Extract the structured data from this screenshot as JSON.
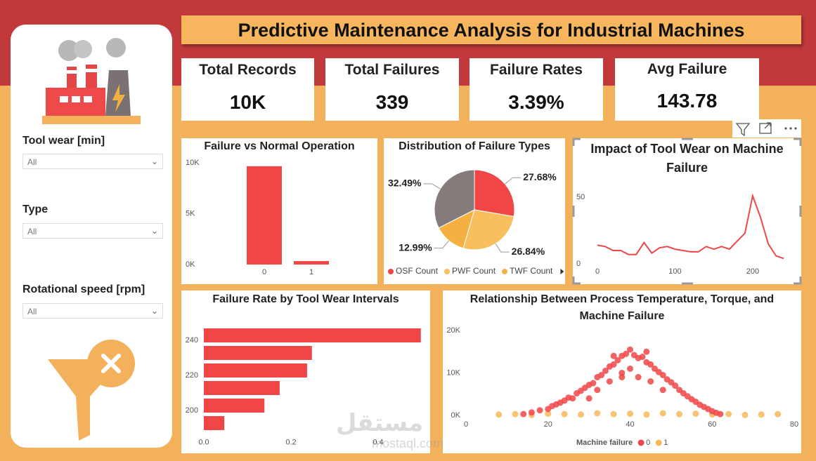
{
  "header": {
    "title": "Predictive Maintenance Analysis for Industrial Machines"
  },
  "kpis": [
    {
      "label": "Total Records",
      "value": "10K"
    },
    {
      "label": "Total Failures",
      "value": "339"
    },
    {
      "label": "Failure Rates",
      "value": "3.39%"
    },
    {
      "label": "Avg Failure",
      "value": "143.78"
    }
  ],
  "filters": [
    {
      "label": "Tool wear [min]",
      "value": "All"
    },
    {
      "label": "Type",
      "value": "All"
    },
    {
      "label": "Rotational speed [rpm]",
      "value": "All"
    }
  ],
  "watermark": {
    "arabic": "مستقل",
    "latin": "mostaql.com"
  },
  "chart_data": [
    {
      "type": "bar",
      "title": "Failure vs Normal Operation",
      "categories": [
        "0",
        "1"
      ],
      "values": [
        9661,
        339
      ],
      "color": "#f04646",
      "ylim": [
        0,
        10000
      ],
      "yticks": [
        {
          "value": 0,
          "label": "0K"
        },
        {
          "value": 5000,
          "label": "5K"
        },
        {
          "value": 10000,
          "label": "10K"
        }
      ]
    },
    {
      "type": "pie",
      "title": "Distribution of Failure Types",
      "categories": [
        "OSF Count",
        "PWF Count",
        "TWF Count",
        null
      ],
      "values": [
        27.68,
        26.84,
        12.99,
        32.49
      ],
      "value_labels": [
        "27.68%",
        "26.84%",
        "12.99%",
        "32.49%"
      ],
      "colors": [
        "#f04646",
        "#f9bf5e",
        "#f5b042",
        "#857b7b"
      ]
    },
    {
      "type": "line",
      "title": "Impact of Tool Wear on Machine Failure",
      "x": [
        0,
        10,
        20,
        30,
        40,
        50,
        60,
        70,
        80,
        90,
        100,
        110,
        120,
        130,
        140,
        150,
        160,
        170,
        180,
        190,
        200,
        210,
        220,
        230,
        240
      ],
      "values": [
        14,
        13,
        10,
        10,
        7,
        7,
        16,
        8,
        12,
        13,
        11,
        10,
        9,
        9,
        13,
        11,
        13,
        11,
        17,
        23,
        51,
        35,
        15,
        6,
        4
      ],
      "color": "#f04646",
      "xlim": [
        -25,
        258
      ],
      "ylim": [
        0,
        60
      ],
      "xticks": [
        0,
        100,
        200
      ],
      "yticks": [
        0,
        50
      ]
    },
    {
      "type": "hbar",
      "title": "Failure Rate by Tool Wear Intervals",
      "categories": [
        "240",
        null,
        "220",
        null,
        "200",
        null
      ],
      "values": [
        0.498,
        0.248,
        0.237,
        0.174,
        0.139,
        0.047
      ],
      "color": "#f04646",
      "xlim": [
        0,
        0.5
      ],
      "xticks": [
        {
          "value": 0,
          "label": "0.0"
        },
        0.2,
        0.4
      ]
    },
    {
      "type": "scatter",
      "title": "Relationship Between Process Temperature, Torque, and Machine Failure",
      "legend_title": "Machine failure",
      "xlim": [
        0,
        80
      ],
      "xticks": [
        0,
        20,
        40,
        60,
        80
      ],
      "ylim": [
        0,
        20000
      ],
      "yticks": [
        {
          "value": 0,
          "label": "0K"
        },
        {
          "value": 10000,
          "label": "10K"
        },
        {
          "value": 20000,
          "label": "20K"
        }
      ],
      "series": [
        {
          "name": "0",
          "color": "#f04646",
          "x": [
            14,
            16,
            18,
            20,
            21,
            22,
            23,
            24,
            25,
            26,
            27,
            28,
            29,
            30,
            31,
            32,
            33,
            34,
            35,
            36,
            37,
            38,
            39,
            40,
            41,
            42,
            43,
            44,
            45,
            46,
            47,
            48,
            49,
            50,
            51,
            52,
            53,
            54,
            55,
            56,
            57,
            58,
            59,
            60,
            61,
            62,
            32,
            35,
            38,
            40,
            42,
            45,
            30,
            48,
            36,
            44,
            38
          ],
          "values": [
            300,
            700,
            1200,
            1500,
            2200,
            2600,
            3000,
            3500,
            4200,
            4000,
            5200,
            5800,
            6500,
            7200,
            7600,
            9000,
            9500,
            10500,
            11500,
            12000,
            13000,
            14000,
            14500,
            15500,
            14200,
            13500,
            13800,
            12500,
            12000,
            11000,
            10200,
            9500,
            8500,
            7800,
            7000,
            6000,
            5200,
            4500,
            3800,
            3200,
            2500,
            2000,
            1500,
            1000,
            600,
            300,
            6000,
            8000,
            10000,
            11000,
            9000,
            8000,
            4000,
            6000,
            14000,
            15000,
            9000
          ]
        },
        {
          "name": "1",
          "color": "#f7b85a",
          "x": [
            8,
            12,
            16,
            20,
            24,
            28,
            32,
            36,
            40,
            44,
            48,
            52,
            56,
            60,
            64,
            68,
            72,
            76
          ],
          "values": [
            200,
            300,
            100,
            400,
            300,
            200,
            500,
            300,
            400,
            200,
            500,
            300,
            400,
            200,
            300,
            100,
            200,
            300
          ]
        }
      ]
    }
  ]
}
